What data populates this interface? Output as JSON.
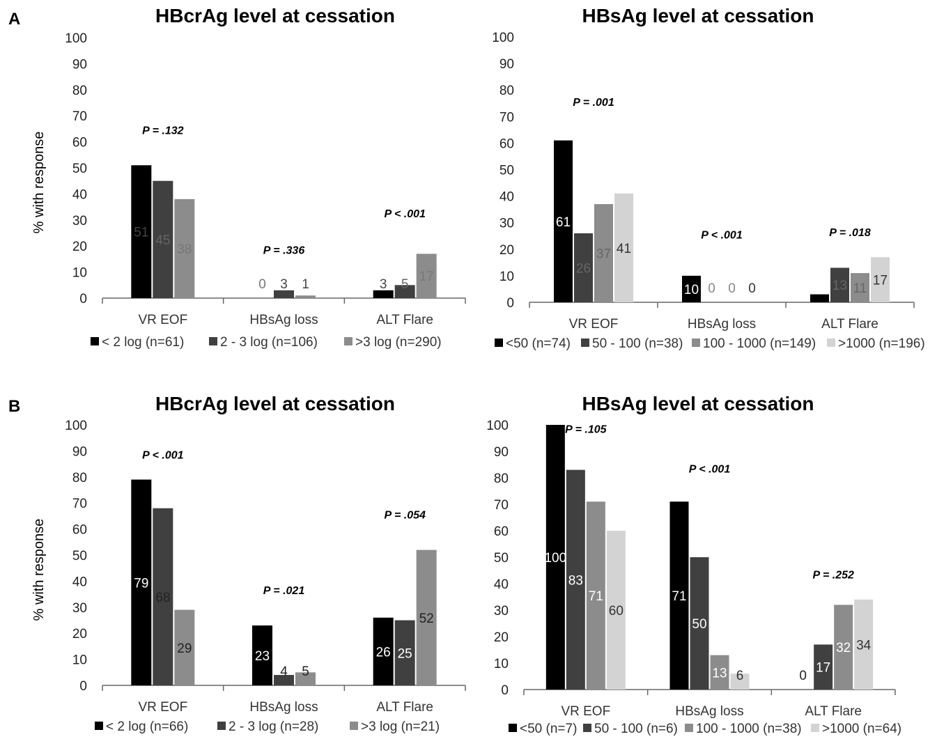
{
  "panel_labels": [
    "A",
    "B"
  ],
  "colors": {
    "black": "#000000",
    "dark_gray": "#404040",
    "mid_gray": "#8c8c8c",
    "light_gray": "#d3d3d3"
  },
  "chart_data": [
    {
      "type": "bar",
      "panel": "A",
      "title": "HBcrAg level at cessation",
      "ylabel": "% with response",
      "ylim": [
        0,
        100
      ],
      "yticks": [
        0,
        10,
        20,
        30,
        40,
        50,
        60,
        70,
        80,
        90,
        100
      ],
      "categories": [
        "VR EOF",
        "HBsAg loss",
        "ALT Flare"
      ],
      "series": [
        {
          "name": "< 2 log (n=61)",
          "color": "#000000",
          "values": [
            51,
            0,
            3
          ],
          "labels": [
            "51",
            "0",
            "3"
          ],
          "label_color": [
            "#444444",
            "#777777",
            "#444444"
          ]
        },
        {
          "name": "2 - 3 log (n=106)",
          "color": "#404040",
          "values": [
            45,
            3,
            5
          ],
          "labels": [
            "45",
            "3",
            "5"
          ],
          "label_color": [
            "#666666",
            "#444444",
            "#666666"
          ]
        },
        {
          "name": ">3 log (n=290)",
          "color": "#8c8c8c",
          "values": [
            38,
            1,
            17
          ],
          "labels": [
            "38",
            "1",
            "17"
          ],
          "label_color": [
            "#777777",
            "#444444",
            "#777777"
          ]
        }
      ],
      "annotations": [
        "P = .132",
        "P = .336",
        "P < .001"
      ],
      "annotation_y": [
        63,
        17,
        31
      ]
    },
    {
      "type": "bar",
      "panel": "A",
      "title": "HBsAg level at cessation",
      "ylabel": "",
      "ylim": [
        0,
        100
      ],
      "yticks": [
        0,
        10,
        20,
        30,
        40,
        50,
        60,
        70,
        80,
        90,
        100
      ],
      "categories": [
        "VR EOF",
        "HBsAg loss",
        "ALT Flare"
      ],
      "series": [
        {
          "name": "<50 (n=74)",
          "color": "#000000",
          "values": [
            61,
            10,
            3
          ],
          "labels": [
            "61",
            "10",
            ""
          ],
          "label_color": [
            "#ffffff",
            "#ffffff",
            "#ffffff"
          ]
        },
        {
          "name": "50 - 100 (n=38)",
          "color": "#404040",
          "values": [
            26,
            0,
            13
          ],
          "labels": [
            "26",
            "0",
            "13"
          ],
          "label_color": [
            "#666666",
            "#888888",
            "#666666"
          ]
        },
        {
          "name": "100 - 1000 (n=149)",
          "color": "#8c8c8c",
          "values": [
            37,
            0,
            11
          ],
          "labels": [
            "37",
            "0",
            "11"
          ],
          "label_color": [
            "#666666",
            "#888888",
            "#666666"
          ]
        },
        {
          "name": ">1000 (n=196)",
          "color": "#d3d3d3",
          "values": [
            41,
            0,
            17
          ],
          "labels": [
            "41",
            "0",
            "17"
          ],
          "label_color": [
            "#333333",
            "#333333",
            "#333333"
          ]
        }
      ],
      "annotations": [
        "P = .001",
        "P < .001",
        "P = .018"
      ],
      "annotation_y": [
        74,
        24,
        25
      ]
    },
    {
      "type": "bar",
      "panel": "B",
      "title": "HBcrAg level at cessation",
      "ylabel": "% with response",
      "ylim": [
        0,
        100
      ],
      "yticks": [
        0,
        10,
        20,
        30,
        40,
        50,
        60,
        70,
        80,
        90,
        100
      ],
      "categories": [
        "VR EOF",
        "HBsAg loss",
        "ALT Flare"
      ],
      "series": [
        {
          "name": "< 2 log (n=66)",
          "color": "#000000",
          "values": [
            79,
            23,
            26
          ],
          "labels": [
            "79",
            "23",
            "26"
          ],
          "label_color": [
            "#ffffff",
            "#ffffff",
            "#ffffff"
          ]
        },
        {
          "name": "2 - 3 log (n=28)",
          "color": "#404040",
          "values": [
            68,
            4,
            25
          ],
          "labels": [
            "68",
            "4",
            "25"
          ],
          "label_color": [
            "#222222",
            "#222222",
            "#ffffff"
          ]
        },
        {
          "name": ">3 log (n=21)",
          "color": "#8c8c8c",
          "values": [
            29,
            5,
            52
          ],
          "labels": [
            "29",
            "5",
            "52"
          ],
          "label_color": [
            "#222222",
            "#222222",
            "#222222"
          ]
        }
      ],
      "annotations": [
        "P < .001",
        "P = .021",
        "P = .054"
      ],
      "annotation_y": [
        87,
        35,
        64
      ]
    },
    {
      "type": "bar",
      "panel": "B",
      "title": "HBsAg level at cessation",
      "ylabel": "",
      "ylim": [
        0,
        100
      ],
      "yticks": [
        0,
        10,
        20,
        30,
        40,
        50,
        60,
        70,
        80,
        90,
        100
      ],
      "categories": [
        "VR EOF",
        "HBsAg loss",
        "ALT Flare"
      ],
      "series": [
        {
          "name": "<50 (n=7)",
          "color": "#000000",
          "values": [
            100,
            71,
            0
          ],
          "labels": [
            "100",
            "71",
            "0"
          ],
          "label_color": [
            "#ffffff",
            "#ffffff",
            "#222222"
          ]
        },
        {
          "name": "50 - 100 (n=6)",
          "color": "#404040",
          "values": [
            83,
            50,
            17
          ],
          "labels": [
            "83",
            "50",
            "17"
          ],
          "label_color": [
            "#ffffff",
            "#ffffff",
            "#ffffff"
          ]
        },
        {
          "name": "100 - 1000 (n=38)",
          "color": "#8c8c8c",
          "values": [
            71,
            13,
            32
          ],
          "labels": [
            "71",
            "13",
            "32"
          ],
          "label_color": [
            "#ffffff",
            "#ffffff",
            "#ffffff"
          ]
        },
        {
          "name": ">1000 (n=64)",
          "color": "#d3d3d3",
          "values": [
            60,
            6,
            34
          ],
          "labels": [
            "60",
            "6",
            "34"
          ],
          "label_color": [
            "#333333",
            "#333333",
            "#333333"
          ]
        }
      ],
      "annotations": [
        "P = .105",
        "P < .001",
        "P = .252"
      ],
      "annotation_y": [
        97,
        82,
        42
      ]
    }
  ]
}
